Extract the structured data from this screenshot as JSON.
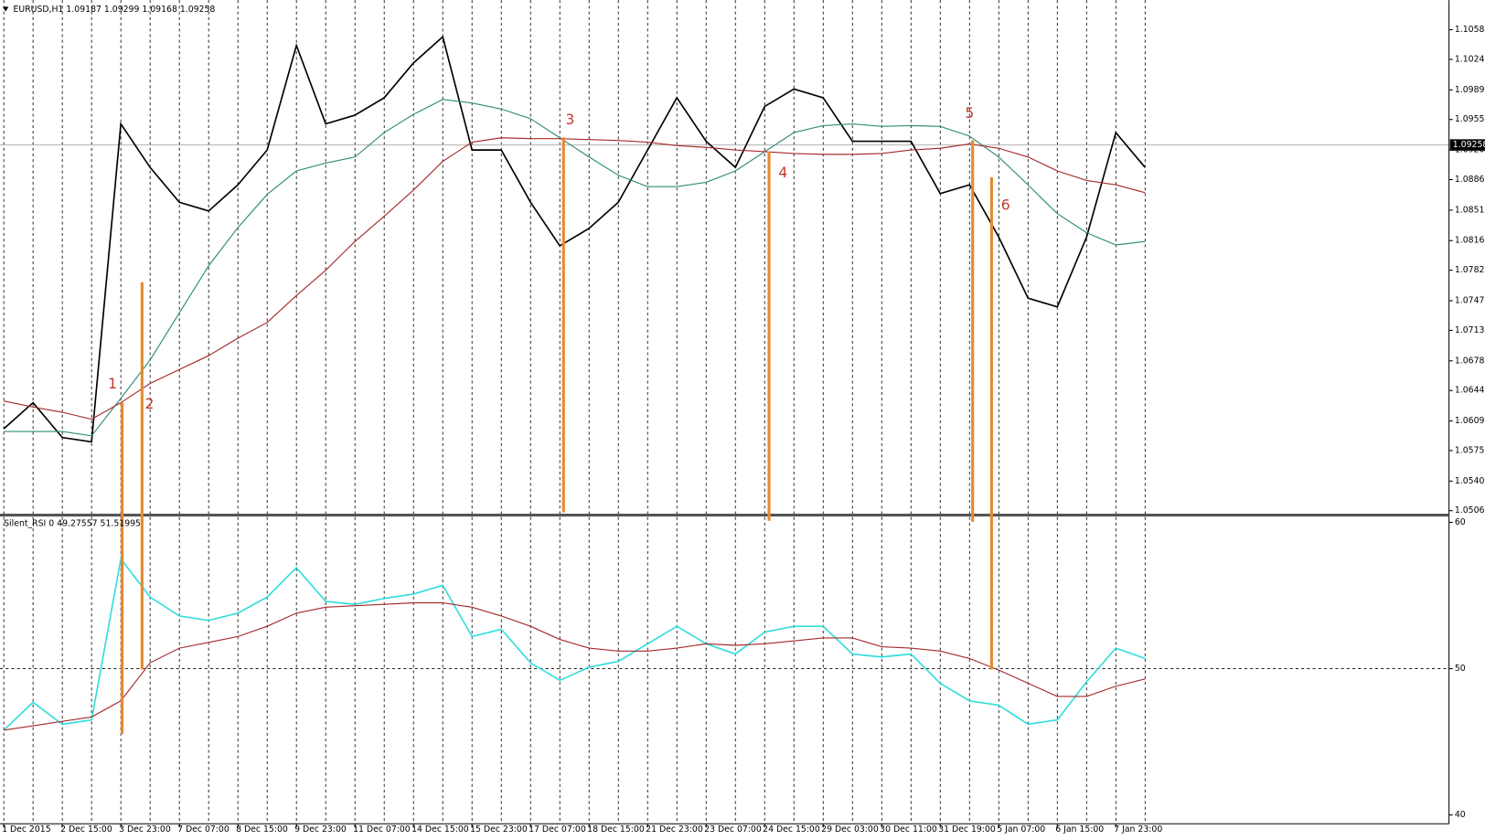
{
  "chart_data": [
    {
      "type": "line",
      "title": "EURUSD,H1  1.09187 1.09299 1.09168 1.09258",
      "ylim": [
        1.0502,
        1.1092
      ],
      "yticks": [
        {
          "value": 1.0506,
          "label": "1.05060"
        },
        {
          "value": 1.054,
          "label": "1.05400"
        },
        {
          "value": 1.0575,
          "label": "1.05750"
        },
        {
          "value": 1.0609,
          "label": "1.06090"
        },
        {
          "value": 1.0644,
          "label": "1.06440"
        },
        {
          "value": 1.0678,
          "label": "1.06780"
        },
        {
          "value": 1.0713,
          "label": "1.07130"
        },
        {
          "value": 1.0747,
          "label": "1.07470"
        },
        {
          "value": 1.0782,
          "label": "1.07820"
        },
        {
          "value": 1.0816,
          "label": "1.08160"
        },
        {
          "value": 1.0851,
          "label": "1.08510"
        },
        {
          "value": 1.0886,
          "label": "1.08860"
        },
        {
          "value": 1.092,
          "label": "1.09200"
        },
        {
          "value": 1.0955,
          "label": "1.09550"
        },
        {
          "value": 1.0989,
          "label": "1.09890"
        },
        {
          "value": 1.1024,
          "label": "1.10240"
        },
        {
          "value": 1.1058,
          "label": "1.10580"
        }
      ],
      "last_price": 1.09258,
      "series": [
        {
          "color": "#000000",
          "values": [
            1.06,
            1.063,
            1.059,
            1.0585,
            1.095,
            1.09,
            1.086,
            1.085,
            1.088,
            1.092,
            1.104,
            1.095,
            1.096,
            1.098,
            1.102,
            1.105,
            1.092,
            1.092,
            1.086,
            1.081,
            1.083,
            1.086,
            1.092,
            1.098,
            1.093,
            1.09,
            1.097,
            1.099,
            1.098,
            1.093,
            1.093,
            1.093,
            1.087,
            1.088,
            1.082,
            1.075,
            1.074,
            1.082,
            1.094,
            1.09
          ]
        },
        {
          "color": "#2e8b7a",
          "values": [
            1.0597,
            1.0597,
            1.0597,
            1.0592,
            1.0635,
            1.0679,
            1.0733,
            1.0787,
            1.0831,
            1.0869,
            1.0896,
            1.0905,
            1.0912,
            1.094,
            1.0961,
            1.0978,
            1.0974,
            1.0967,
            1.0956,
            1.0934,
            1.0912,
            1.0891,
            1.0878,
            1.0878,
            1.0883,
            1.0896,
            1.0918,
            1.094,
            1.0948,
            1.095,
            1.0947,
            1.0948,
            1.0947,
            1.0936,
            1.0912,
            1.088,
            1.0847,
            1.0825,
            1.0811,
            1.0815
          ]
        },
        {
          "color": "#a52a2a",
          "values": [
            1.0632,
            1.0625,
            1.0619,
            1.0611,
            1.063,
            1.0652,
            1.0668,
            1.0684,
            1.0704,
            1.0722,
            1.0753,
            1.0782,
            1.0815,
            1.0844,
            1.0874,
            1.0907,
            1.0929,
            1.0934,
            1.0933,
            1.0933,
            1.0932,
            1.0931,
            1.0929,
            1.0925,
            1.0923,
            1.092,
            1.0918,
            1.0916,
            1.0915,
            1.0915,
            1.0916,
            1.092,
            1.0922,
            1.0927,
            1.0922,
            1.0912,
            1.0896,
            1.0885,
            1.088,
            1.0871
          ]
        }
      ],
      "annotations": [
        "1",
        "2",
        "3",
        "4",
        "5",
        "6"
      ]
    },
    {
      "type": "line",
      "title": "Silent_RSI 0 49.27557 51.51995",
      "categories": [
        "1 Dec 2015",
        null,
        "2 Dec 15:00",
        null,
        "3 Dec 23:00",
        null,
        "7 Dec 07:00",
        null,
        "8 Dec 15:00",
        null,
        "9 Dec 23:00",
        null,
        "11 Dec 07:00",
        null,
        "14 Dec 15:00",
        null,
        "15 Dec 23:00",
        null,
        "17 Dec 07:00",
        null,
        "18 Dec 15:00",
        null,
        "21 Dec 23:00",
        null,
        "23 Dec 07:00",
        null,
        "24 Dec 15:00",
        null,
        "29 Dec 03:00",
        null,
        "30 Dec 11:00",
        null,
        "31 Dec 19:00",
        null,
        "5 Jan 07:00",
        null,
        "6 Jan 15:00",
        null,
        "7 Jan 23:00",
        null
      ],
      "ylim": [
        39.4,
        60.3
      ],
      "yticks": [
        40,
        50,
        60
      ],
      "levels": [
        50
      ],
      "series": [
        {
          "color": "#33dddd",
          "values": [
            45.8,
            47.7,
            46.2,
            46.5,
            57.5,
            54.9,
            53.6,
            53.3,
            53.8,
            54.9,
            56.9,
            54.6,
            54.4,
            54.8,
            55.1,
            55.7,
            52.2,
            52.7,
            50.4,
            49.2,
            50.1,
            50.5,
            51.7,
            52.9,
            51.7,
            51.0,
            52.5,
            52.9,
            52.9,
            51.0,
            50.8,
            51.0,
            49.0,
            47.8,
            47.5,
            46.2,
            46.5,
            49.1,
            51.4,
            50.7
          ]
        },
        {
          "color": "#a52a2a",
          "values": [
            45.8,
            46.1,
            46.4,
            46.7,
            47.8,
            50.4,
            51.4,
            51.8,
            52.2,
            52.9,
            53.8,
            54.2,
            54.3,
            54.4,
            54.5,
            54.5,
            54.2,
            53.6,
            52.9,
            52.0,
            51.4,
            51.2,
            51.2,
            51.4,
            51.7,
            51.6,
            51.7,
            51.9,
            52.1,
            52.1,
            51.5,
            51.4,
            51.2,
            50.7,
            49.9,
            49.0,
            48.1,
            48.1,
            48.8,
            49.3
          ]
        }
      ]
    }
  ]
}
